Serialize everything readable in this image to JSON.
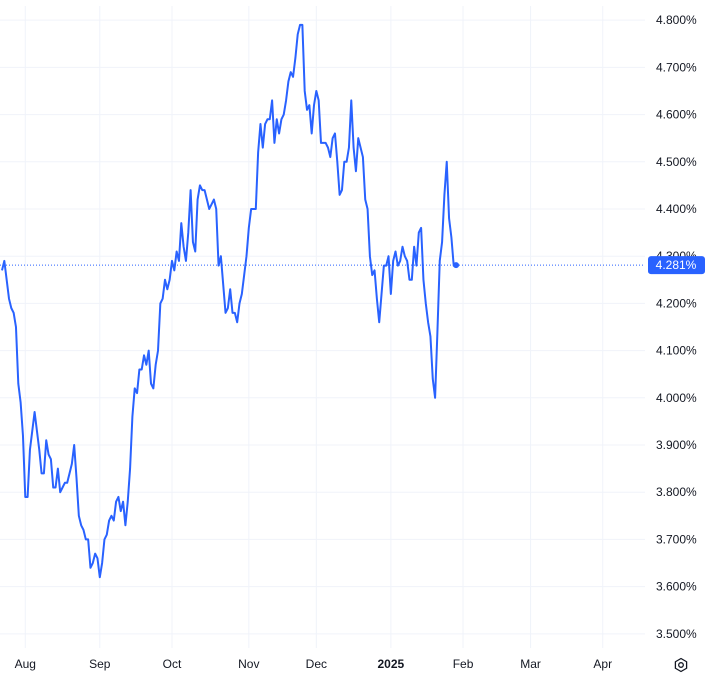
{
  "chart_data": {
    "type": "line",
    "title": "",
    "xlabel": "",
    "ylabel": "",
    "ylim": [
      3.47,
      4.83
    ],
    "y_ticks": [
      "3.500%",
      "3.600%",
      "3.700%",
      "3.800%",
      "3.900%",
      "4.000%",
      "4.100%",
      "4.200%",
      "4.300%",
      "4.400%",
      "4.500%",
      "4.600%",
      "4.700%",
      "4.800%"
    ],
    "y_tick_values": [
      3.5,
      3.6,
      3.7,
      3.8,
      3.9,
      4.0,
      4.1,
      4.2,
      4.3,
      4.4,
      4.5,
      4.6,
      4.7,
      4.8
    ],
    "x_ticks": [
      {
        "label": "Aug",
        "index": 10,
        "bold": false
      },
      {
        "label": "Sep",
        "index": 42,
        "bold": false
      },
      {
        "label": "Oct",
        "index": 73,
        "bold": false
      },
      {
        "label": "Nov",
        "index": 106,
        "bold": false
      },
      {
        "label": "Dec",
        "index": 135,
        "bold": false
      },
      {
        "label": "2025",
        "index": 167,
        "bold": true
      },
      {
        "label": "Feb",
        "index": 198,
        "bold": false
      },
      {
        "label": "Mar",
        "index": 227,
        "bold": false
      },
      {
        "label": "Apr",
        "index": 258,
        "bold": false
      }
    ],
    "x_count": 275,
    "grid": true,
    "last_value": 4.281,
    "last_value_label": "4.281%",
    "line_color": "#2962ff",
    "series": [
      {
        "values": [
          4.27,
          4.29,
          4.25,
          4.21,
          4.19,
          4.18,
          4.15,
          4.03,
          3.99,
          3.92,
          3.79,
          3.79,
          3.89,
          3.93,
          3.97,
          3.93,
          3.89,
          3.84,
          3.84,
          3.91,
          3.88,
          3.87,
          3.81,
          3.81,
          3.85,
          3.8,
          3.81,
          3.82,
          3.82,
          3.84,
          3.86,
          3.9,
          3.83,
          3.75,
          3.73,
          3.72,
          3.7,
          3.7,
          3.64,
          3.65,
          3.67,
          3.66,
          3.62,
          3.65,
          3.7,
          3.71,
          3.74,
          3.75,
          3.74,
          3.78,
          3.79,
          3.76,
          3.78,
          3.73,
          3.78,
          3.85,
          3.96,
          4.02,
          4.01,
          4.06,
          4.06,
          4.09,
          4.07,
          4.1,
          4.03,
          4.02,
          4.07,
          4.1,
          4.2,
          4.21,
          4.25,
          4.23,
          4.25,
          4.29,
          4.27,
          4.31,
          4.29,
          4.37,
          4.32,
          4.29,
          4.35,
          4.44,
          4.33,
          4.31,
          4.42,
          4.45,
          4.44,
          4.44,
          4.42,
          4.4,
          4.41,
          4.42,
          4.4,
          4.28,
          4.3,
          4.24,
          4.18,
          4.19,
          4.23,
          4.18,
          4.18,
          4.16,
          4.2,
          4.22,
          4.26,
          4.3,
          4.36,
          4.4,
          4.4,
          4.4,
          4.52,
          4.58,
          4.53,
          4.58,
          4.59,
          4.59,
          4.63,
          4.54,
          4.59,
          4.56,
          4.59,
          4.6,
          4.63,
          4.67,
          4.69,
          4.68,
          4.72,
          4.77,
          4.79,
          4.79,
          4.65,
          4.61,
          4.62,
          4.56,
          4.62,
          4.65,
          4.63,
          4.54,
          4.54,
          4.54,
          4.53,
          4.51,
          4.55,
          4.56,
          4.5,
          4.43,
          4.44,
          4.5,
          4.5,
          4.53,
          4.63,
          4.53,
          4.48,
          4.55,
          4.53,
          4.51,
          4.42,
          4.4,
          4.3,
          4.26,
          4.27,
          4.21,
          4.16,
          4.22,
          4.28,
          4.28,
          4.3,
          4.22,
          4.29,
          4.31,
          4.28,
          4.29,
          4.32,
          4.3,
          4.29,
          4.25,
          4.25,
          4.32,
          4.28,
          4.35,
          4.36,
          4.25,
          4.2,
          4.16,
          4.13,
          4.04,
          4.0,
          4.14,
          4.29,
          4.33,
          4.43,
          4.5,
          4.38,
          4.34,
          4.28,
          4.28
        ]
      }
    ]
  },
  "settings": {
    "icon": "gear-icon"
  }
}
